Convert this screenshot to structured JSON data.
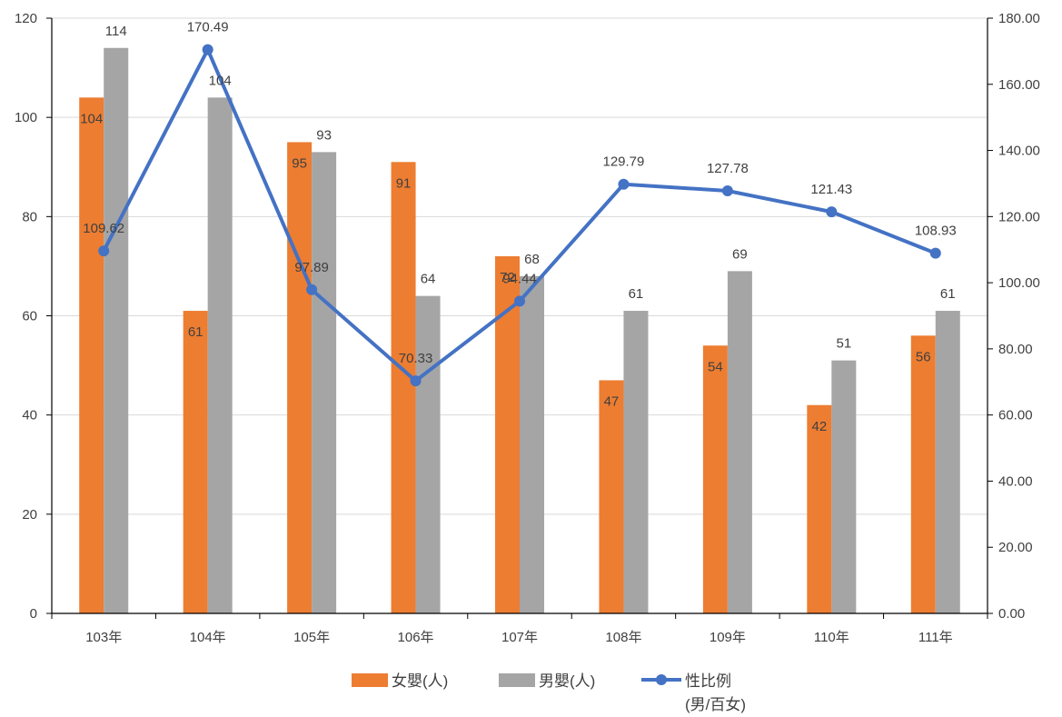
{
  "chart_data": {
    "type": "bar",
    "categories": [
      "103年",
      "104年",
      "105年",
      "106年",
      "107年",
      "108年",
      "109年",
      "110年",
      "111年"
    ],
    "series": [
      {
        "name": "女嬰(人)",
        "kind": "bar",
        "axis": "left",
        "color": "#ED7D31",
        "values": [
          104,
          61,
          95,
          91,
          72,
          47,
          54,
          42,
          56
        ],
        "labels": [
          "104",
          "61",
          "95",
          "91",
          "72",
          "47",
          "54",
          "42",
          "56"
        ]
      },
      {
        "name": "男嬰(人)",
        "kind": "bar",
        "axis": "left",
        "color": "#A5A5A5",
        "values": [
          114,
          104,
          93,
          64,
          68,
          61,
          69,
          51,
          61
        ],
        "labels": [
          "114",
          "104",
          "93",
          "64",
          "68",
          "61",
          "69",
          "51",
          "61"
        ]
      },
      {
        "name": "性比例",
        "name_line2": "(男/百女)",
        "kind": "line",
        "axis": "right",
        "color": "#4472C4",
        "values": [
          109.62,
          170.49,
          97.89,
          70.33,
          94.44,
          129.79,
          127.78,
          121.43,
          108.93
        ],
        "labels": [
          "109.62",
          "170.49",
          "97.89",
          "70.33",
          "94.44",
          "129.79",
          "127.78",
          "121.43",
          "108.93"
        ]
      }
    ],
    "ylim_left": [
      0,
      120
    ],
    "ylim_right": [
      0,
      180
    ],
    "yticks_left": [
      "0",
      "20",
      "40",
      "60",
      "80",
      "100",
      "120"
    ],
    "yticks_right": [
      "0.00",
      "20.00",
      "40.00",
      "60.00",
      "80.00",
      "100.00",
      "120.00",
      "140.00",
      "160.00",
      "180.00"
    ],
    "grid": true,
    "legend_position": "bottom"
  }
}
